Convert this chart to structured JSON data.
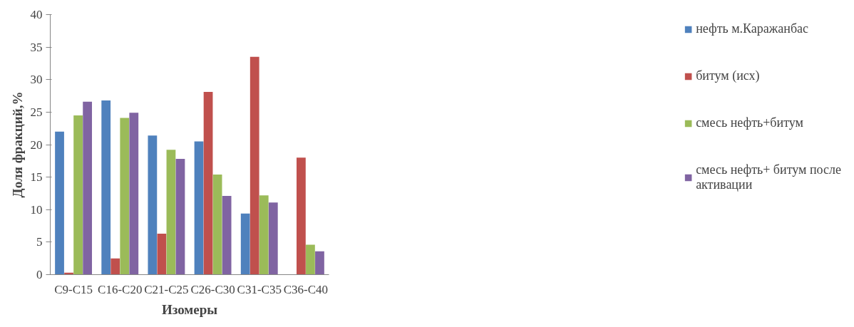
{
  "chart_data": {
    "type": "bar",
    "xlabel": "Изомеры",
    "ylabel": "Доля фракций,%",
    "categories": [
      "C9-C15",
      "C16-C20",
      "C21-C25",
      "C26-C30",
      "C31-C35",
      "C36-C40"
    ],
    "series": [
      {
        "name": "нефть м.Каражанбас",
        "color": "#4f81bd",
        "values": [
          22.0,
          26.8,
          21.4,
          20.5,
          9.4,
          0
        ]
      },
      {
        "name": "битум (исх)",
        "color": "#c0504d",
        "values": [
          0.3,
          2.5,
          6.3,
          28.1,
          33.5,
          18.0
        ]
      },
      {
        "name": "смесь нефть+битум",
        "color": "#9bbb59",
        "values": [
          24.5,
          24.1,
          19.2,
          15.4,
          12.2,
          4.6
        ]
      },
      {
        "name": "смесь нефть+ битум после активации",
        "color": "#8064a2",
        "values": [
          26.6,
          24.9,
          17.8,
          12.1,
          11.1,
          3.6
        ]
      }
    ],
    "ylim": [
      0,
      40
    ],
    "yticks": [
      0,
      5,
      10,
      15,
      20,
      25,
      30,
      35,
      40
    ],
    "grid": false,
    "legend": "right"
  }
}
